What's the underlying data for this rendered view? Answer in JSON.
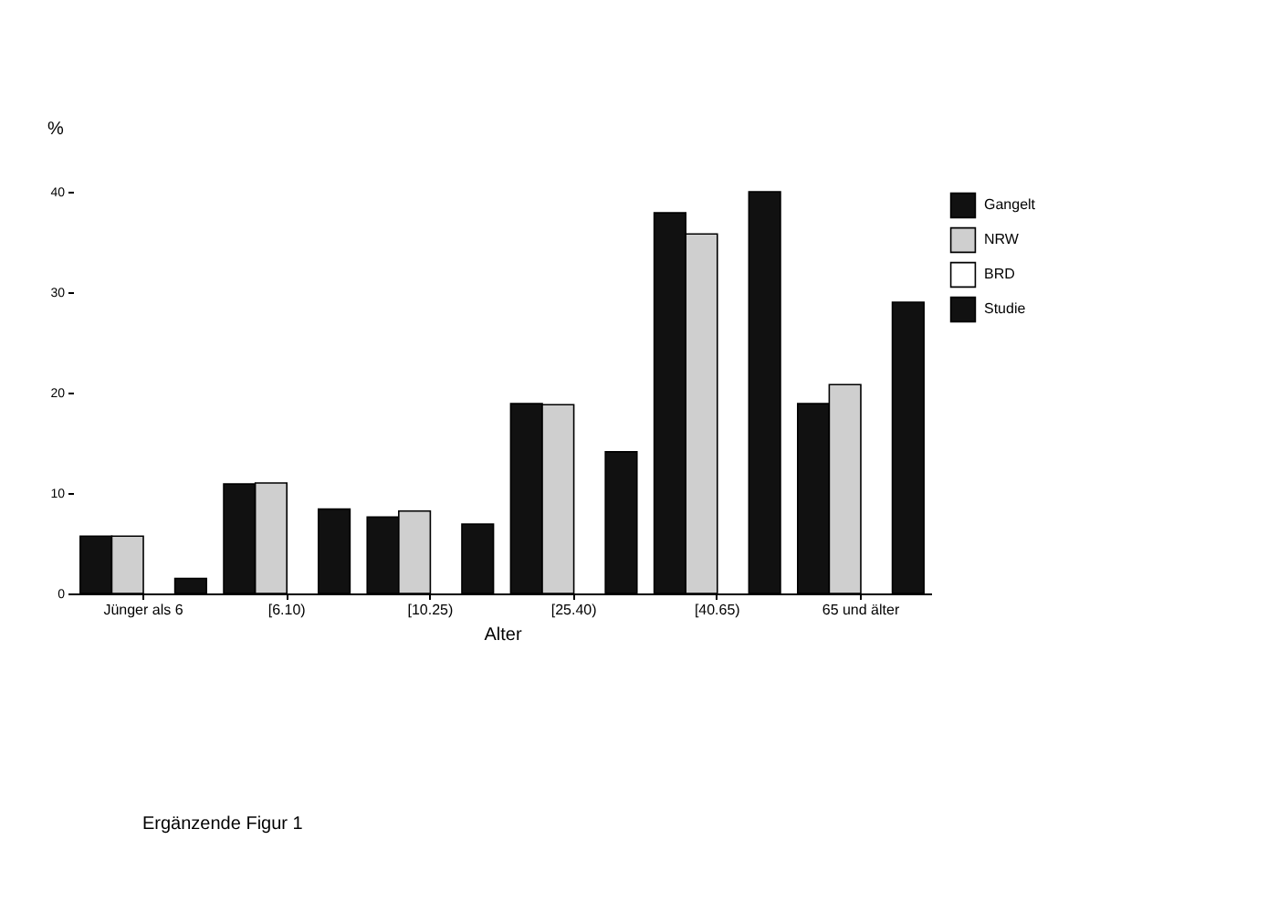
{
  "chart_data": {
    "type": "bar",
    "ylabel": "%",
    "xlabel": "Alter",
    "categories": [
      "Jünger als 6",
      "[6.10)",
      "[10.25)",
      "[25.40)",
      "[40.65)",
      "65 und älter"
    ],
    "series": [
      {
        "name": "Gangelt",
        "color": "#111111",
        "values": [
          5.7,
          10.9,
          7.6,
          18.9,
          37.9,
          18.9
        ]
      },
      {
        "name": "NRW",
        "color": "#cfcfcf",
        "values": [
          5.7,
          11,
          8.2,
          18.8,
          35.8,
          20.8
        ]
      },
      {
        "name": "BRD",
        "color": "#ffffff",
        "values": [
          null,
          null,
          null,
          null,
          null,
          null
        ]
      },
      {
        "name": "Studie",
        "color": "#111111",
        "values": [
          1.5,
          8.4,
          6.9,
          14.1,
          40,
          29
        ]
      }
    ],
    "ylim": [
      0,
      40
    ],
    "yticks": [
      0,
      10,
      20,
      30,
      40
    ],
    "grid": false,
    "legend": "right",
    "annotations": [
      "Ergänzende Figur 1"
    ]
  }
}
